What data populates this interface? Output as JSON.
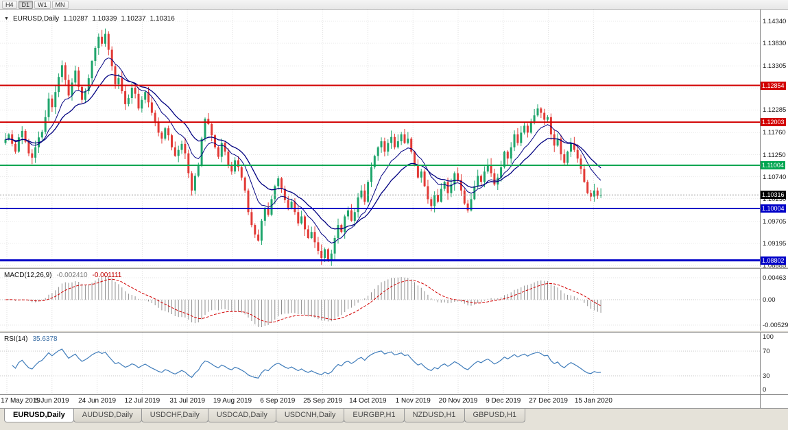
{
  "toolbar": {
    "timeframes": [
      "H4",
      "D1",
      "W1",
      "MN"
    ],
    "active": "D1"
  },
  "chart": {
    "type": "candlestick",
    "symbol": "EURUSD,Daily",
    "open": "1.10287",
    "high": "1.10339",
    "low": "1.10237",
    "close": "1.10316",
    "current_price": "1.10316",
    "price_axis": [
      "1.14340",
      "1.13830",
      "1.13305",
      "1.12795",
      "1.12285",
      "1.11760",
      "1.11250",
      "1.10740",
      "1.10230",
      "1.09705",
      "1.09195",
      "1.08685"
    ],
    "hlines": [
      {
        "price": 1.12854,
        "label": "1.12854",
        "color": "#d20000",
        "w": 2
      },
      {
        "price": 1.12003,
        "label": "1.12003",
        "color": "#d20000",
        "w": 2
      },
      {
        "price": 1.11004,
        "label": "1.11004",
        "color": "#00a651",
        "w": 2
      },
      {
        "price": 1.10004,
        "label": "1.10004",
        "color": "#0000c8",
        "w": 2
      },
      {
        "price": 1.08802,
        "label": "1.08802",
        "color": "#0000c8",
        "w": 3
      }
    ],
    "dates": [
      "17 May 2019",
      "5 Jun 2019",
      "24 Jun 2019",
      "12 Jul 2019",
      "31 Jul 2019",
      "19 Aug 2019",
      "6 Sep 2019",
      "25 Sep 2019",
      "14 Oct 2019",
      "1 Nov 2019",
      "20 Nov 2019",
      "9 Dec 2019",
      "27 Dec 2019",
      "15 Jan 2020"
    ],
    "closes": [
      1.116,
      1.1172,
      1.115,
      1.1132,
      1.1165,
      1.118,
      1.1155,
      1.1128,
      1.1118,
      1.1142,
      1.1165,
      1.1178,
      1.1212,
      1.1255,
      1.1235,
      1.127,
      1.1305,
      1.1332,
      1.1298,
      1.1262,
      1.1292,
      1.132,
      1.1282,
      1.1252,
      1.1272,
      1.1302,
      1.1342,
      1.1372,
      1.1398,
      1.1382,
      1.1405,
      1.1368,
      1.133,
      1.1288,
      1.1302,
      1.1272,
      1.1242,
      1.1256,
      1.128,
      1.1266,
      1.1232,
      1.1252,
      1.127,
      1.1246,
      1.1222,
      1.1202,
      1.1176,
      1.1162,
      1.1186,
      1.117,
      1.1142,
      1.1122,
      1.1136,
      1.115,
      1.1128,
      1.1082,
      1.1042,
      1.1076,
      1.1102,
      1.1162,
      1.1208,
      1.1196,
      1.117,
      1.1142,
      1.112,
      1.1152,
      1.1132,
      1.1102,
      1.1086,
      1.1112,
      1.1096,
      1.1072,
      1.1042,
      1.0992,
      1.0962,
      1.094,
      1.0926,
      1.0972,
      1.1002,
      1.0986,
      1.1022,
      1.1052,
      1.107,
      1.1046,
      1.102,
      1.1002,
      1.1016,
      1.0992,
      1.0966,
      1.0982,
      1.0952,
      1.0932,
      1.0946,
      1.0922,
      1.0902,
      1.0886,
      1.0906,
      1.0882,
      1.0896,
      1.0932,
      1.0962,
      1.0946,
      1.0982,
      1.0996,
      1.0972,
      1.0992,
      1.1026,
      1.1042,
      1.1016,
      1.1062,
      1.1096,
      1.1122,
      1.1142,
      1.1156,
      1.1132,
      1.1152,
      1.1166,
      1.1142,
      1.1156,
      1.1172,
      1.1152,
      1.1162,
      1.1132,
      1.1102,
      1.1072,
      1.1086,
      1.1052,
      1.1022,
      1.1006,
      1.1032,
      1.1016,
      1.1046,
      1.1062,
      1.1036,
      1.1056,
      1.1082,
      1.1066,
      1.1042,
      1.1012,
      1.0996,
      1.1022,
      1.1052,
      1.1076,
      1.1062,
      1.1086,
      1.1102,
      1.1082,
      1.1056,
      1.1072,
      1.1096,
      1.1132,
      1.1116,
      1.1142,
      1.1172,
      1.1152,
      1.1176,
      1.1192,
      1.1176,
      1.1202,
      1.1216,
      1.1232,
      1.1222,
      1.1206,
      1.1212,
      1.1172,
      1.1146,
      1.1162,
      1.1126,
      1.1106,
      1.1132,
      1.1152,
      1.1136,
      1.1116,
      1.1092,
      1.1062,
      1.1036,
      1.1028,
      1.1042,
      1.103,
      1.10316
    ],
    "colors": {
      "up": "#1fa56c",
      "down": "#e23a36",
      "ma": "#000080",
      "macd_hist": "#8f8f8f",
      "macd_signal": "#d20000",
      "rsi_line": "#3f7cba",
      "grid": "#e9e9e9",
      "current_tag_bg": "#000000"
    }
  },
  "macd": {
    "label": "MACD(12,26,9)",
    "value_main": "-0.002410",
    "value_signal": "-0.001111",
    "axis": [
      "0.00463",
      "0.00",
      "-0.00529"
    ]
  },
  "rsi": {
    "label": "RSI(14)",
    "value": "35.6378",
    "axis": [
      "100",
      "70",
      "30",
      "0"
    ]
  },
  "tabs": [
    {
      "label": "EURUSD,Daily",
      "active": true
    },
    {
      "label": "AUDUSD,Daily",
      "active": false
    },
    {
      "label": "USDCHF,Daily",
      "active": false
    },
    {
      "label": "USDCAD,Daily",
      "active": false
    },
    {
      "label": "USDCNH,Daily",
      "active": false
    },
    {
      "label": "EURGBP,H1",
      "active": false
    },
    {
      "label": "NZDUSD,H1",
      "active": false
    },
    {
      "label": "GBPUSD,H1",
      "active": false
    }
  ]
}
